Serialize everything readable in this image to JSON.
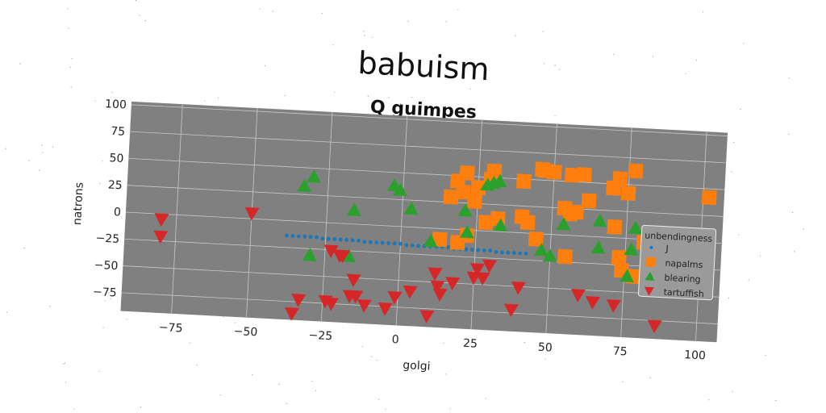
{
  "chart_data": {
    "type": "scatter",
    "suptitle": "babuism",
    "title": "Q guimpes",
    "xlabel": "golgi",
    "ylabel": "natrons",
    "xlim": [
      -92,
      107
    ],
    "ylim": [
      -92,
      103
    ],
    "xticks": [
      -75,
      -50,
      -25,
      0,
      25,
      50,
      75,
      100
    ],
    "yticks": [
      100,
      75,
      50,
      25,
      0,
      -25,
      -50,
      -75
    ],
    "xtick_labels": [
      "−75",
      "−50",
      "−25",
      "0",
      "25",
      "50",
      "75",
      "100"
    ],
    "ytick_labels": [
      "100",
      "75",
      "50",
      "25",
      "0",
      "−25",
      "−50",
      "−75"
    ],
    "grid": true,
    "background": "#808080",
    "legend": {
      "title": "unbendingness",
      "placement": "right"
    },
    "series": [
      {
        "name": "J",
        "marker": "circle",
        "color": "#1f77b4",
        "x": [
          -38,
          -36,
          -34,
          -32,
          -30,
          -28,
          -26,
          -24,
          -22,
          -20,
          -18,
          -16,
          -14,
          -12,
          -10,
          -8,
          -6,
          -4,
          -2,
          0,
          2,
          4,
          6,
          8,
          10,
          12,
          14,
          16,
          18,
          20,
          22,
          24,
          26,
          28,
          30,
          32,
          34,
          36,
          38,
          40,
          42
        ],
        "y": [
          -14,
          -14,
          -14,
          -14,
          -14,
          -14,
          -15,
          -15,
          -15,
          -15,
          -15,
          -15,
          -15,
          -16,
          -16,
          -16,
          -16,
          -16,
          -16,
          -16,
          -17,
          -17,
          -17,
          -17,
          -17,
          -17,
          -17,
          -17,
          -18,
          -18,
          -18,
          -18,
          -18,
          -18,
          -18,
          -19,
          -19,
          -19,
          -19,
          -19,
          -19
        ]
      },
      {
        "name": "napalms",
        "marker": "square",
        "color": "#ff7f0e",
        "x": [
          16,
          18,
          21,
          24,
          29,
          30,
          40,
          46,
          47,
          50,
          56,
          60,
          62,
          70,
          72,
          75,
          77,
          81,
          88,
          94,
          102,
          56,
          58,
          40,
          55,
          42,
          45,
          13,
          19,
          22,
          28,
          32,
          54,
          71,
          73,
          74,
          78,
          20,
          25
        ],
        "y": [
          30,
          45,
          53,
          27,
          48,
          56,
          48,
          60,
          59,
          58,
          56,
          57,
          33,
          46,
          55,
          42,
          63,
          -3,
          -10,
          -15,
          42,
          20,
          22,
          15,
          -20,
          10,
          -5,
          -10,
          -12,
          -5,
          8,
          12,
          25,
          10,
          -18,
          -30,
          -35,
          35,
          40
        ],
        "show": [
          0,
          1,
          2,
          3,
          4,
          5,
          6,
          7,
          8,
          9,
          10,
          11,
          12,
          13,
          14,
          17,
          18,
          19,
          20
        ]
      },
      {
        "name": "blearing",
        "marker": "triangle-up",
        "color": "#2ca02c",
        "x": [
          -30,
          -33,
          -30,
          -17,
          -16,
          -3,
          -1,
          3,
          10,
          21,
          22,
          28,
          30,
          32,
          33,
          47,
          50,
          54,
          66,
          66,
          76,
          77,
          78
        ],
        "y": [
          42,
          33,
          -31,
          -30,
          13,
          38,
          34,
          17,
          -12,
          18,
          -2,
          43,
          45,
          47,
          6,
          -15,
          -20,
          10,
          -10,
          15,
          -35,
          -10,
          10
        ],
        "show": [
          0,
          1,
          2,
          3,
          4,
          5,
          6,
          7,
          8,
          9,
          10,
          11,
          12,
          13
        ]
      },
      {
        "name": "tartuffish",
        "marker": "triangle-down",
        "color": "#d62728",
        "x": [
          -80,
          -80,
          -50,
          -35,
          -33,
          -24,
          -23,
          -22,
          -20,
          -19,
          -16,
          -15,
          -14,
          -11,
          -4,
          -1,
          4,
          10,
          12,
          13,
          14,
          18,
          25,
          26,
          28,
          30,
          38,
          40,
          60,
          65,
          72,
          86
        ],
        "y": [
          -5,
          -21,
          5,
          -86,
          -73,
          -73,
          -26,
          -75,
          -30,
          -30,
          -67,
          -52,
          -67,
          -75,
          -77,
          -66,
          -60,
          -82,
          -42,
          -54,
          -61,
          -50,
          -44,
          -36,
          -44,
          -32,
          -72,
          -51,
          -55,
          -61,
          -63,
          -80
        ],
        "show": []
      }
    ]
  }
}
